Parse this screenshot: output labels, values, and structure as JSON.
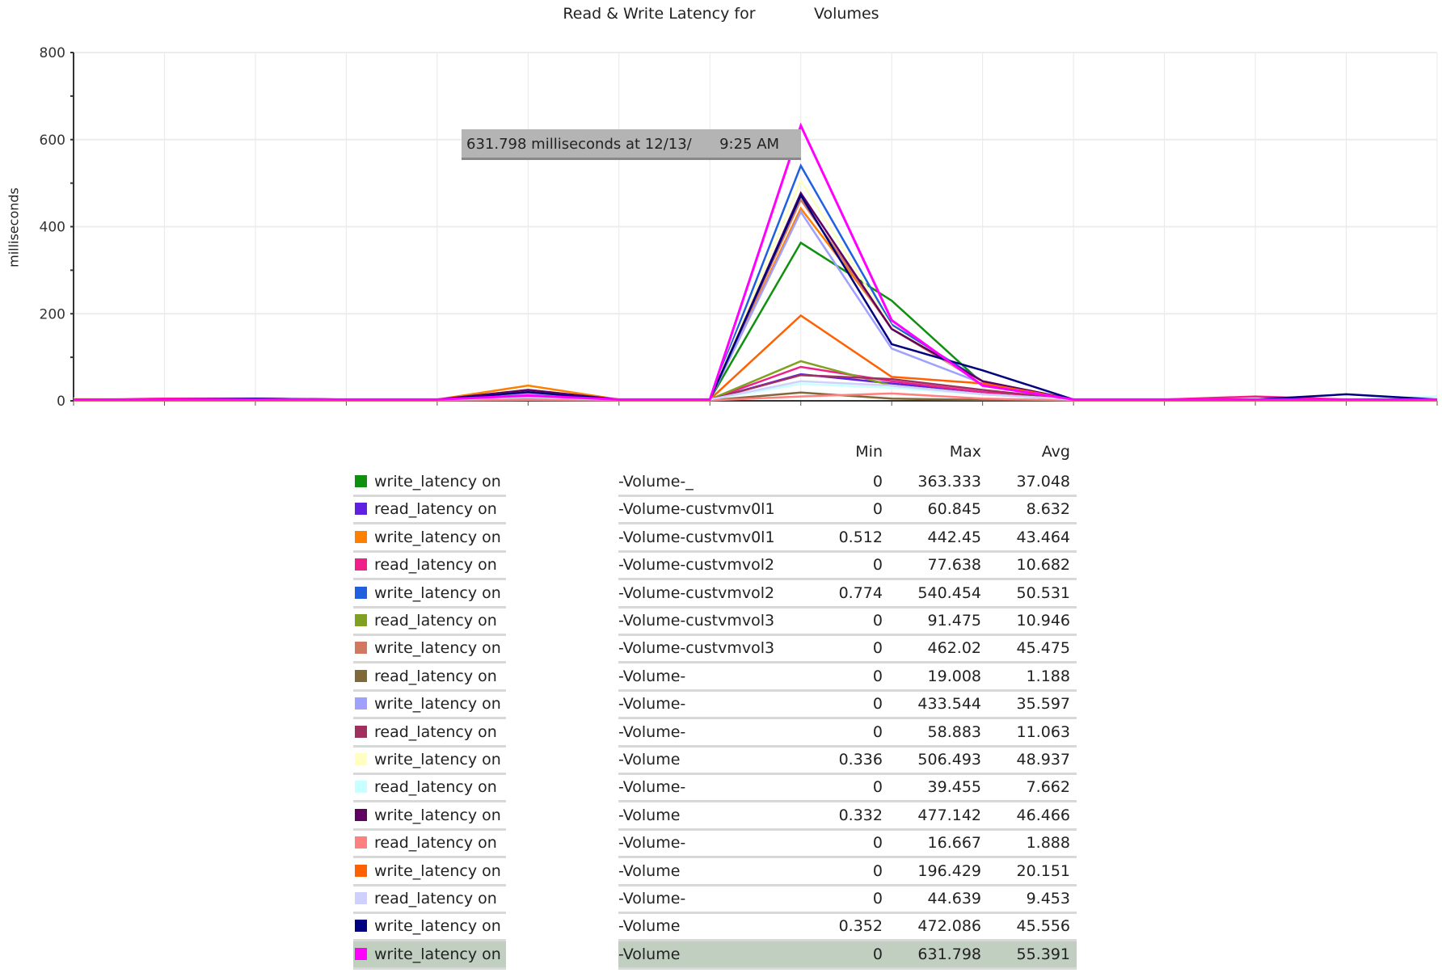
{
  "chart_data": {
    "type": "line",
    "title": "Read & Write Latency for            Volumes",
    "ylabel": "milliseconds",
    "ylim": [
      0,
      800
    ],
    "yticks": [
      0,
      200,
      400,
      600,
      800
    ],
    "x_count": 16,
    "tooltip": "631.798 milliseconds at 12/13/      9:25 AM",
    "columns": [
      "Min",
      "Max",
      "Avg"
    ],
    "series": [
      {
        "label": "write_latency on",
        "volume": "-Volume-_",
        "color": "#109010",
        "min": "0",
        "max": "363.333",
        "avg": "37.048",
        "values": [
          3,
          3,
          3,
          3,
          3,
          8,
          3,
          3,
          363,
          230,
          40,
          3,
          3,
          3,
          3,
          3
        ]
      },
      {
        "label": "read_latency on",
        "volume": "-Volume-custvmv0l1",
        "color": "#6020e0",
        "min": "0",
        "max": "60.845",
        "avg": "8.632",
        "values": [
          3,
          3,
          3,
          3,
          3,
          10,
          3,
          3,
          61,
          40,
          20,
          3,
          3,
          3,
          3,
          3
        ]
      },
      {
        "label": "write_latency on",
        "volume": "-Volume-custvmv0l1",
        "color": "#ff8000",
        "min": "0.512",
        "max": "442.45",
        "avg": "43.464",
        "values": [
          3,
          3,
          5,
          3,
          3,
          35,
          3,
          3,
          442,
          170,
          40,
          3,
          3,
          3,
          3,
          3
        ]
      },
      {
        "label": "read_latency on",
        "volume": "-Volume-custvmvol2",
        "color": "#f0208a",
        "min": "0",
        "max": "77.638",
        "avg": "10.682",
        "values": [
          3,
          5,
          5,
          3,
          3,
          15,
          3,
          3,
          78,
          45,
          20,
          3,
          3,
          10,
          3,
          3
        ]
      },
      {
        "label": "write_latency on",
        "volume": "-Volume-custvmvol2",
        "color": "#2060e0",
        "min": "0.774",
        "max": "540.454",
        "avg": "50.531",
        "values": [
          3,
          3,
          3,
          3,
          3,
          20,
          3,
          3,
          540,
          175,
          45,
          3,
          3,
          3,
          3,
          3
        ]
      },
      {
        "label": "read_latency on",
        "volume": "-Volume-custvmvol3",
        "color": "#80a020",
        "min": "0",
        "max": "91.475",
        "avg": "10.946",
        "values": [
          3,
          3,
          3,
          3,
          3,
          8,
          3,
          3,
          91,
          35,
          15,
          3,
          3,
          3,
          3,
          3
        ]
      },
      {
        "label": "write_latency on",
        "volume": "-Volume-custvmvol3",
        "color": "#d07860",
        "min": "0",
        "max": "462.02",
        "avg": "45.475",
        "values": [
          3,
          3,
          3,
          3,
          3,
          25,
          3,
          3,
          462,
          165,
          40,
          3,
          3,
          3,
          3,
          3
        ]
      },
      {
        "label": "read_latency on",
        "volume": "-Volume-",
        "color": "#806838",
        "min": "0",
        "max": "19.008",
        "avg": "1.188",
        "values": [
          1,
          1,
          1,
          1,
          1,
          3,
          1,
          1,
          19,
          5,
          2,
          1,
          1,
          1,
          1,
          1
        ]
      },
      {
        "label": "write_latency on",
        "volume": "-Volume-",
        "color": "#a0a0ff",
        "min": "0",
        "max": "433.544",
        "avg": "35.597",
        "values": [
          3,
          3,
          3,
          3,
          3,
          15,
          3,
          3,
          434,
          120,
          40,
          3,
          3,
          3,
          3,
          3
        ]
      },
      {
        "label": "read_latency on",
        "volume": "-Volume-",
        "color": "#a03060",
        "min": "0",
        "max": "58.883",
        "avg": "11.063",
        "values": [
          3,
          3,
          3,
          3,
          3,
          10,
          3,
          3,
          59,
          50,
          25,
          3,
          3,
          3,
          3,
          3
        ]
      },
      {
        "label": "write_latency on",
        "volume": "-Volume",
        "color": "#ffffc0",
        "min": "0.336",
        "max": "506.493",
        "avg": "48.937",
        "values": [
          5,
          3,
          3,
          3,
          3,
          20,
          3,
          3,
          506,
          170,
          40,
          3,
          3,
          3,
          3,
          3
        ]
      },
      {
        "label": "read_latency on",
        "volume": "-Volume-",
        "color": "#c8ffff",
        "min": "0",
        "max": "39.455",
        "avg": "7.662",
        "values": [
          3,
          3,
          3,
          3,
          3,
          8,
          3,
          3,
          39,
          30,
          15,
          3,
          3,
          3,
          3,
          10
        ]
      },
      {
        "label": "write_latency on",
        "volume": "-Volume",
        "color": "#600060",
        "min": "0.332",
        "max": "477.142",
        "avg": "46.466",
        "values": [
          3,
          3,
          3,
          3,
          3,
          25,
          3,
          3,
          477,
          165,
          45,
          3,
          3,
          3,
          3,
          3
        ]
      },
      {
        "label": "read_latency on",
        "volume": "-Volume-",
        "color": "#ff8080",
        "min": "0",
        "max": "16.667",
        "avg": "1.888",
        "values": [
          1,
          1,
          1,
          1,
          1,
          2,
          1,
          1,
          10,
          17,
          5,
          1,
          1,
          1,
          1,
          1
        ]
      },
      {
        "label": "write_latency on",
        "volume": "-Volume",
        "color": "#ff6000",
        "min": "0",
        "max": "196.429",
        "avg": "20.151",
        "values": [
          3,
          3,
          3,
          3,
          3,
          20,
          3,
          3,
          196,
          55,
          40,
          3,
          3,
          3,
          3,
          3
        ]
      },
      {
        "label": "read_latency on",
        "volume": "-Volume-",
        "color": "#d0d0ff",
        "min": "0",
        "max": "44.639",
        "avg": "9.453",
        "values": [
          3,
          3,
          3,
          3,
          3,
          8,
          3,
          3,
          45,
          35,
          15,
          3,
          3,
          3,
          3,
          3
        ]
      },
      {
        "label": "write_latency on",
        "volume": "-Volume",
        "color": "#000080",
        "min": "0.352",
        "max": "472.086",
        "avg": "45.556",
        "values": [
          3,
          3,
          5,
          3,
          3,
          20,
          3,
          3,
          472,
          130,
          70,
          3,
          3,
          3,
          15,
          3
        ]
      },
      {
        "label": "write_latency on",
        "volume": "-Volume",
        "color": "#ff00ff",
        "min": "0",
        "max": "631.798",
        "avg": "55.391",
        "values": [
          3,
          3,
          3,
          3,
          3,
          12,
          3,
          3,
          632,
          185,
          35,
          3,
          3,
          3,
          3,
          3
        ]
      }
    ]
  }
}
